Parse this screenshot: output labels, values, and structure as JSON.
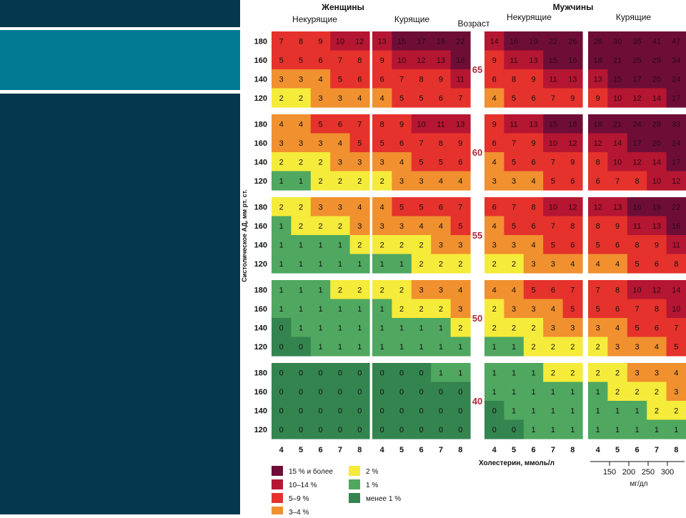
{
  "chart_data": {
    "type": "heatmap",
    "groups": [
      {
        "label": "Женщины",
        "sub": [
          "Некурящие",
          "Курящие"
        ]
      },
      {
        "label": "Мужчины",
        "sub": [
          "Некурящие",
          "Курящие"
        ]
      }
    ],
    "age_header": "Возраст",
    "ylabel": "Систолическое АД, мм рт. ст.",
    "xlabel": "Холестерин, ммоль/л",
    "x_ticks": [
      "4",
      "5",
      "6",
      "7",
      "8"
    ],
    "y_ticks": [
      "180",
      "160",
      "140",
      "120"
    ],
    "ages": [
      "65",
      "60",
      "55",
      "50",
      "40"
    ],
    "mgdl_ticks": [
      "150",
      "200",
      "250",
      "300"
    ],
    "mgdl_label": "мг/дл",
    "legend": [
      {
        "label": "15 % и более",
        "color": "#6e0e37"
      },
      {
        "label": "10–14 %",
        "color": "#b51632"
      },
      {
        "label": "5–9 %",
        "color": "#e5322c"
      },
      {
        "label": "3–4 %",
        "color": "#f0902f"
      },
      {
        "label": "2 %",
        "color": "#f5eb3a"
      },
      {
        "label": "1 %",
        "color": "#4fa760"
      },
      {
        "label": "менее 1 %",
        "color": "#34844f"
      }
    ],
    "panels": [
      [
        [
          [
            7,
            8,
            9,
            10,
            12
          ],
          [
            5,
            5,
            6,
            7,
            8
          ],
          [
            3,
            3,
            4,
            5,
            6
          ],
          [
            2,
            2,
            3,
            3,
            4
          ]
        ],
        [
          [
            13,
            15,
            17,
            19,
            22
          ],
          [
            9,
            10,
            12,
            13,
            16
          ],
          [
            6,
            7,
            8,
            9,
            11
          ],
          [
            4,
            5,
            5,
            6,
            7
          ]
        ],
        [
          [
            14,
            16,
            19,
            22,
            26
          ],
          [
            9,
            11,
            13,
            15,
            16
          ],
          [
            6,
            8,
            9,
            11,
            13
          ],
          [
            4,
            5,
            6,
            7,
            9
          ]
        ],
        [
          [
            26,
            30,
            35,
            41,
            47
          ],
          [
            18,
            21,
            25,
            29,
            34
          ],
          [
            13,
            15,
            17,
            20,
            24
          ],
          [
            9,
            10,
            12,
            14,
            17
          ]
        ]
      ],
      [
        [
          [
            4,
            4,
            5,
            6,
            7
          ],
          [
            3,
            3,
            3,
            4,
            5
          ],
          [
            2,
            2,
            2,
            3,
            3
          ],
          [
            1,
            1,
            2,
            2,
            2
          ]
        ],
        [
          [
            8,
            9,
            10,
            11,
            13
          ],
          [
            5,
            6,
            7,
            8,
            9
          ],
          [
            3,
            4,
            5,
            5,
            6
          ],
          [
            2,
            3,
            3,
            4,
            4
          ]
        ],
        [
          [
            9,
            11,
            13,
            15,
            18
          ],
          [
            6,
            7,
            9,
            10,
            12
          ],
          [
            4,
            5,
            6,
            7,
            9
          ],
          [
            3,
            3,
            4,
            5,
            6
          ]
        ],
        [
          [
            18,
            21,
            24,
            28,
            33
          ],
          [
            12,
            14,
            17,
            20,
            24
          ],
          [
            8,
            10,
            12,
            14,
            17
          ],
          [
            6,
            7,
            8,
            10,
            12
          ]
        ]
      ],
      [
        [
          [
            2,
            2,
            3,
            3,
            4
          ],
          [
            1,
            2,
            2,
            2,
            3
          ],
          [
            1,
            1,
            1,
            1,
            2
          ],
          [
            1,
            1,
            1,
            1,
            1
          ]
        ],
        [
          [
            4,
            5,
            5,
            6,
            7
          ],
          [
            3,
            3,
            4,
            4,
            5
          ],
          [
            2,
            2,
            2,
            3,
            3
          ],
          [
            1,
            1,
            2,
            2,
            2
          ]
        ],
        [
          [
            6,
            7,
            8,
            10,
            12
          ],
          [
            4,
            5,
            6,
            7,
            8
          ],
          [
            3,
            3,
            4,
            5,
            6
          ],
          [
            2,
            2,
            3,
            3,
            4
          ]
        ],
        [
          [
            12,
            13,
            16,
            19,
            22
          ],
          [
            8,
            9,
            11,
            13,
            16
          ],
          [
            5,
            6,
            8,
            9,
            11
          ],
          [
            4,
            4,
            5,
            6,
            8
          ]
        ]
      ],
      [
        [
          [
            1,
            1,
            1,
            2,
            2
          ],
          [
            1,
            1,
            1,
            1,
            1
          ],
          [
            0,
            1,
            1,
            1,
            1
          ],
          [
            0,
            0,
            1,
            1,
            1
          ]
        ],
        [
          [
            2,
            2,
            3,
            3,
            4
          ],
          [
            1,
            2,
            2,
            2,
            3
          ],
          [
            1,
            1,
            1,
            1,
            2
          ],
          [
            1,
            1,
            1,
            1,
            1
          ]
        ],
        [
          [
            4,
            4,
            5,
            6,
            7
          ],
          [
            2,
            3,
            3,
            4,
            5
          ],
          [
            2,
            2,
            2,
            3,
            3
          ],
          [
            1,
            1,
            2,
            2,
            2
          ]
        ],
        [
          [
            7,
            8,
            10,
            12,
            14
          ],
          [
            5,
            6,
            7,
            8,
            10
          ],
          [
            3,
            4,
            5,
            6,
            7
          ],
          [
            2,
            3,
            3,
            4,
            5
          ]
        ]
      ],
      [
        [
          [
            0,
            0,
            0,
            0,
            0
          ],
          [
            0,
            0,
            0,
            0,
            0
          ],
          [
            0,
            0,
            0,
            0,
            0
          ],
          [
            0,
            0,
            0,
            0,
            0
          ]
        ],
        [
          [
            0,
            0,
            0,
            1,
            1
          ],
          [
            0,
            0,
            0,
            0,
            0
          ],
          [
            0,
            0,
            0,
            0,
            0
          ],
          [
            0,
            0,
            0,
            0,
            0
          ]
        ],
        [
          [
            1,
            1,
            1,
            2,
            2
          ],
          [
            1,
            1,
            1,
            1,
            1
          ],
          [
            0,
            1,
            1,
            1,
            1
          ],
          [
            0,
            0,
            1,
            1,
            1
          ]
        ],
        [
          [
            2,
            2,
            3,
            3,
            4
          ],
          [
            1,
            2,
            2,
            2,
            3
          ],
          [
            1,
            1,
            1,
            2,
            2
          ],
          [
            1,
            1,
            1,
            1,
            1
          ]
        ]
      ]
    ]
  }
}
